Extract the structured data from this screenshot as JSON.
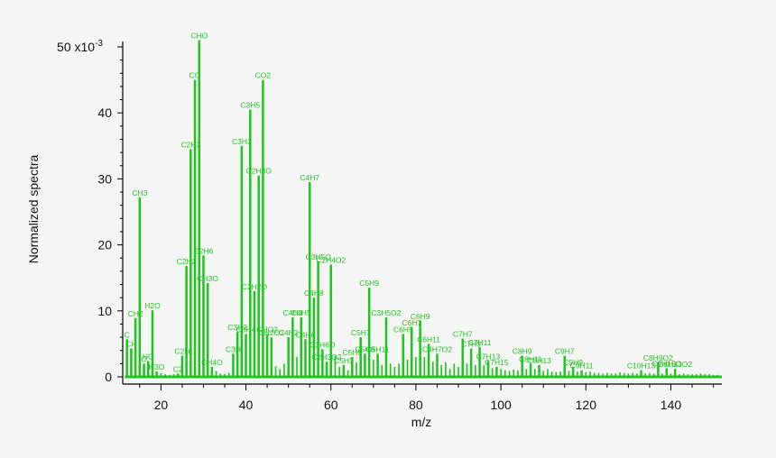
{
  "chart_data": {
    "type": "bar",
    "style": "stick spectrum",
    "title": "",
    "xlabel": "m/z",
    "ylabel": "Normalized spectra",
    "y_scale_label": "x10",
    "y_scale_exponent": "-3",
    "y_top_label_value": "50",
    "xlim": [
      11,
      152
    ],
    "ylim": [
      0,
      50
    ],
    "x_ticks": [
      20,
      40,
      60,
      80,
      100,
      120,
      140
    ],
    "y_ticks": [
      0,
      10,
      20,
      30,
      40,
      50
    ],
    "series_color": "#1fc41f",
    "labeled_peaks": [
      {
        "x": 12,
        "y": 5.7,
        "label": "C"
      },
      {
        "x": 13,
        "y": 4.3,
        "label": "CH"
      },
      {
        "x": 14,
        "y": 8.9,
        "label": "CH2"
      },
      {
        "x": 15,
        "y": 27.2,
        "label": "CH3"
      },
      {
        "x": 16,
        "y": 2.0,
        "label": "O"
      },
      {
        "x": 17,
        "y": 2.4,
        "label": "HO"
      },
      {
        "x": 18,
        "y": 10.1,
        "label": "H2O"
      },
      {
        "x": 19,
        "y": 0.8,
        "label": "H3O"
      },
      {
        "x": 24,
        "y": 0.5,
        "label": "C2"
      },
      {
        "x": 25,
        "y": 3.2,
        "label": "C2H"
      },
      {
        "x": 26,
        "y": 16.8,
        "label": "C2H2"
      },
      {
        "x": 27,
        "y": 34.5,
        "label": "C2H3"
      },
      {
        "x": 28,
        "y": 45.0,
        "label": "CO"
      },
      {
        "x": 29,
        "y": 51.0,
        "label": "CHO"
      },
      {
        "x": 30,
        "y": 18.4,
        "label": "C2H6"
      },
      {
        "x": 31,
        "y": 14.2,
        "label": "CH3O"
      },
      {
        "x": 32,
        "y": 1.5,
        "label": "CH4O"
      },
      {
        "x": 37,
        "y": 3.5,
        "label": "C3H"
      },
      {
        "x": 38,
        "y": 6.8,
        "label": "C3H2"
      },
      {
        "x": 39,
        "y": 35.0,
        "label": "C3H3"
      },
      {
        "x": 40,
        "y": 6.5,
        "label": "C3H4"
      },
      {
        "x": 41,
        "y": 40.5,
        "label": "C3H5"
      },
      {
        "x": 42,
        "y": 13.0,
        "label": "C2H2O"
      },
      {
        "x": 43,
        "y": 30.5,
        "label": "C2H3O"
      },
      {
        "x": 44,
        "y": 45.0,
        "label": "CO2"
      },
      {
        "x": 45,
        "y": 6.5,
        "label": "CHO2"
      },
      {
        "x": 46,
        "y": 6.0,
        "label": "CH2O2"
      },
      {
        "x": 50,
        "y": 6.0,
        "label": "C4H2"
      },
      {
        "x": 51,
        "y": 9.0,
        "label": "C4H3"
      },
      {
        "x": 53,
        "y": 9.0,
        "label": "C4H5"
      },
      {
        "x": 54,
        "y": 5.7,
        "label": "C4H6"
      },
      {
        "x": 55,
        "y": 29.5,
        "label": "C4H7"
      },
      {
        "x": 56,
        "y": 12.0,
        "label": "C4H8"
      },
      {
        "x": 57,
        "y": 17.5,
        "label": "C3H5O"
      },
      {
        "x": 58,
        "y": 4.2,
        "label": "C3H6O"
      },
      {
        "x": 59,
        "y": 2.3,
        "label": "C2H3O2"
      },
      {
        "x": 60,
        "y": 17.0,
        "label": "C2H4O2"
      },
      {
        "x": 63,
        "y": 1.8,
        "label": "C5H3"
      },
      {
        "x": 65,
        "y": 3.0,
        "label": "C5H5"
      },
      {
        "x": 67,
        "y": 6.0,
        "label": "C5H7"
      },
      {
        "x": 68,
        "y": 3.5,
        "label": "C5H8"
      },
      {
        "x": 69,
        "y": 13.5,
        "label": "C5H9"
      },
      {
        "x": 71,
        "y": 3.5,
        "label": "C5H11"
      },
      {
        "x": 73,
        "y": 9.0,
        "label": "C3H5O2"
      },
      {
        "x": 77,
        "y": 6.5,
        "label": "C6H5"
      },
      {
        "x": 79,
        "y": 7.5,
        "label": "C6H7"
      },
      {
        "x": 81,
        "y": 8.5,
        "label": "C6H9"
      },
      {
        "x": 83,
        "y": 5.0,
        "label": "C6H11"
      },
      {
        "x": 85,
        "y": 3.5,
        "label": "C4H7O2"
      },
      {
        "x": 91,
        "y": 5.8,
        "label": "C7H7"
      },
      {
        "x": 93,
        "y": 4.3,
        "label": "C7H9"
      },
      {
        "x": 95,
        "y": 4.5,
        "label": "C7H11"
      },
      {
        "x": 97,
        "y": 2.4,
        "label": "C7H13"
      },
      {
        "x": 99,
        "y": 1.5,
        "label": "C7H15"
      },
      {
        "x": 105,
        "y": 3.2,
        "label": "C8H9"
      },
      {
        "x": 107,
        "y": 2.0,
        "label": "C8H11"
      },
      {
        "x": 109,
        "y": 1.8,
        "label": "C8H13"
      },
      {
        "x": 115,
        "y": 3.2,
        "label": "C9H7"
      },
      {
        "x": 117,
        "y": 1.5,
        "label": "C9H9"
      },
      {
        "x": 119,
        "y": 1.0,
        "label": "C9H11"
      },
      {
        "x": 133,
        "y": 1.0,
        "label": "C10H13"
      },
      {
        "x": 137,
        "y": 2.2,
        "label": "C8H9O2"
      },
      {
        "x": 139,
        "y": 1.3,
        "label": "C9H15O"
      },
      {
        "x": 141,
        "y": 1.2,
        "label": "C8H13O2"
      }
    ],
    "unlabeled_peaks": [
      [
        20,
        0.6
      ],
      [
        21,
        0.4
      ],
      [
        22,
        0.3
      ],
      [
        23,
        0.4
      ],
      [
        33,
        0.9
      ],
      [
        34,
        0.5
      ],
      [
        35,
        0.4
      ],
      [
        36,
        0.6
      ],
      [
        47,
        1.6
      ],
      [
        48,
        1.2
      ],
      [
        49,
        2.0
      ],
      [
        52,
        3.0
      ],
      [
        61,
        3.2
      ],
      [
        62,
        1.5
      ],
      [
        64,
        1.0
      ],
      [
        66,
        2.2
      ],
      [
        70,
        2.6
      ],
      [
        72,
        1.8
      ],
      [
        74,
        2.0
      ],
      [
        75,
        1.5
      ],
      [
        76,
        2.0
      ],
      [
        78,
        2.6
      ],
      [
        80,
        3.0
      ],
      [
        82,
        3.0
      ],
      [
        84,
        2.3
      ],
      [
        86,
        1.8
      ],
      [
        87,
        2.2
      ],
      [
        88,
        1.2
      ],
      [
        89,
        2.0
      ],
      [
        90,
        1.5
      ],
      [
        92,
        2.0
      ],
      [
        94,
        1.8
      ],
      [
        96,
        1.8
      ],
      [
        98,
        1.3
      ],
      [
        100,
        1.2
      ],
      [
        101,
        1.0
      ],
      [
        102,
        0.9
      ],
      [
        103,
        1.1
      ],
      [
        104,
        1.0
      ],
      [
        106,
        1.2
      ],
      [
        108,
        1.2
      ],
      [
        110,
        0.9
      ],
      [
        111,
        1.2
      ],
      [
        112,
        0.8
      ],
      [
        113,
        0.7
      ],
      [
        114,
        0.8
      ],
      [
        116,
        0.9
      ],
      [
        118,
        0.8
      ],
      [
        120,
        0.7
      ],
      [
        121,
        0.8
      ],
      [
        122,
        0.6
      ],
      [
        123,
        0.6
      ],
      [
        124,
        0.5
      ],
      [
        125,
        0.6
      ],
      [
        126,
        0.5
      ],
      [
        127,
        0.5
      ],
      [
        128,
        0.7
      ],
      [
        129,
        0.6
      ],
      [
        130,
        0.5
      ],
      [
        131,
        0.6
      ],
      [
        132,
        0.5
      ],
      [
        134,
        0.5
      ],
      [
        135,
        0.6
      ],
      [
        136,
        0.5
      ],
      [
        138,
        0.5
      ],
      [
        140,
        0.5
      ],
      [
        142,
        0.4
      ],
      [
        143,
        0.5
      ],
      [
        144,
        0.4
      ],
      [
        145,
        0.4
      ],
      [
        146,
        0.4
      ],
      [
        147,
        0.5
      ],
      [
        148,
        0.4
      ],
      [
        149,
        0.4
      ],
      [
        150,
        0.3
      ],
      [
        151,
        0.3
      ]
    ]
  }
}
